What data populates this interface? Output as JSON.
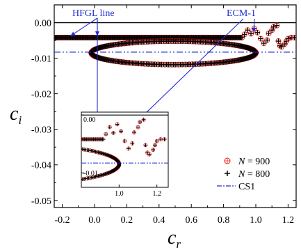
{
  "chart_data": {
    "type": "scatter",
    "xlabel": "c",
    "xlabel_sub": "r",
    "ylabel": "c",
    "ylabel_sub": "i",
    "xlim": [
      -0.25,
      1.25
    ],
    "ylim": [
      -0.052,
      0.005
    ],
    "x_ticks": [
      -0.2,
      0.0,
      0.2,
      0.4,
      0.6,
      0.8,
      1.0,
      1.2
    ],
    "x_tick_labels": [
      "-0.2",
      "0.0",
      "0.2",
      "0.4",
      "0.6",
      "0.8",
      "1.0",
      "1.2"
    ],
    "y_ticks": [
      0.0,
      -0.01,
      -0.02,
      -0.03,
      -0.04,
      -0.05
    ],
    "y_tick_labels": [
      "0.00",
      "-0.01",
      "-0.02",
      "-0.03",
      "-0.04",
      "-0.05"
    ],
    "reference_line_y": 0.0,
    "annotations": [
      {
        "text": "HFGL line"
      },
      {
        "text": "ECM-1"
      }
    ],
    "legend": {
      "position": "bottom-right",
      "entries": [
        {
          "symbol": "circle-cross",
          "label_var": "N",
          "label_rest": " = 900",
          "color": "#e8231f"
        },
        {
          "symbol": "plus",
          "label_var": "N",
          "label_rest": " = 800",
          "color": "#000000"
        },
        {
          "symbol": "dash-dot",
          "label": "CS1",
          "color": "#1f2fd0"
        }
      ]
    },
    "series": [
      {
        "name": "N = 900",
        "marker": "circle-cross",
        "color": "#e8231f",
        "hfgl_line": {
          "x_start": -0.25,
          "x_end": 0.92,
          "y": -0.0042,
          "step": 0.012
        },
        "loop": {
          "x_left": -0.02,
          "x_right": 1.0,
          "y_top": -0.0052,
          "y_bottom": -0.0118,
          "points": 150
        }
      },
      {
        "name": "N = 800",
        "marker": "plus",
        "color": "#000000",
        "hfgl_line": {
          "x_start": -0.25,
          "x_end": 0.92,
          "y": -0.0042,
          "step": 0.006
        },
        "loop": {
          "x_left": -0.02,
          "x_right": 1.0,
          "y_top": -0.0052,
          "y_bottom": -0.0118,
          "points": 300
        }
      },
      {
        "name": "CS1",
        "type": "line",
        "style": "dash-dot",
        "color": "#1f2fd0",
        "y": -0.0083
      }
    ],
    "ecm1_points": [
      {
        "x": 0.93,
        "y": -0.0033
      },
      {
        "x": 0.95,
        "y": -0.0021
      },
      {
        "x": 0.97,
        "y": -0.0031
      },
      {
        "x": 0.99,
        "y": -0.0016
      },
      {
        "x": 1.01,
        "y": -0.0028
      },
      {
        "x": 1.03,
        "y": -0.0045
      },
      {
        "x": 1.05,
        "y": -0.0058
      },
      {
        "x": 1.07,
        "y": -0.0049
      },
      {
        "x": 1.08,
        "y": -0.003
      },
      {
        "x": 1.1,
        "y": -0.0021
      },
      {
        "x": 1.11,
        "y": -0.0012
      },
      {
        "x": 1.13,
        "y": -0.0008
      },
      {
        "x": 1.14,
        "y": -0.0052
      },
      {
        "x": 1.15,
        "y": -0.0065
      },
      {
        "x": 1.16,
        "y": -0.0068
      },
      {
        "x": 1.18,
        "y": -0.006
      },
      {
        "x": 1.19,
        "y": -0.0052
      },
      {
        "x": 1.2,
        "y": -0.0045
      },
      {
        "x": 1.22,
        "y": -0.0042
      },
      {
        "x": 1.24,
        "y": -0.0042
      }
    ],
    "inset": {
      "xlim": [
        0.8,
        1.26
      ],
      "ylim": [
        -0.0125,
        0.0005
      ],
      "x_ticks": [
        1.0,
        1.2
      ],
      "x_tick_labels": [
        "1.0",
        "1.2"
      ],
      "y_ticks": [
        0.0,
        -0.01
      ],
      "y_tick_labels": [
        "0.00",
        "-0.01"
      ]
    }
  }
}
